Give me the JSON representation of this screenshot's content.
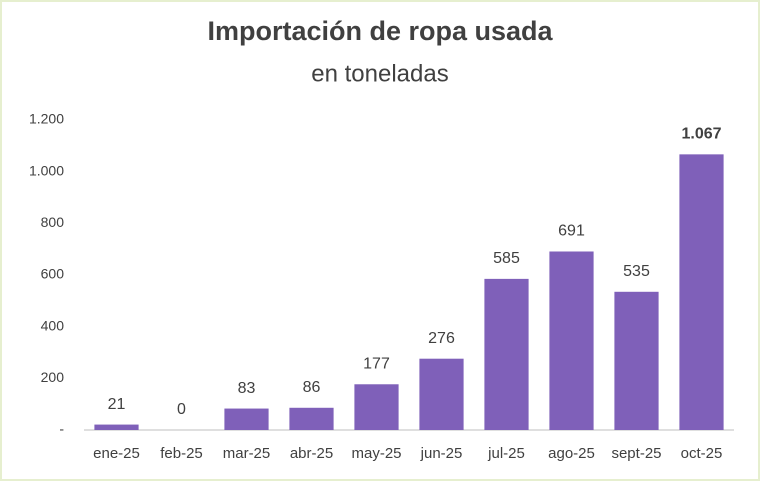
{
  "chart_data": {
    "type": "bar",
    "title": "Importación de ropa usada",
    "subtitle": "en toneladas",
    "categories": [
      "ene-25",
      "feb-25",
      "mar-25",
      "abr-25",
      "may-25",
      "jun-25",
      "jul-25",
      "ago-25",
      "sept-25",
      "oct-25"
    ],
    "values": [
      21,
      0,
      83,
      86,
      177,
      276,
      585,
      691,
      535,
      1067
    ],
    "value_labels": [
      "21",
      "0",
      "83",
      "86",
      "177",
      "276",
      "585",
      "691",
      "535",
      "1.067"
    ],
    "color": "#7f60b9",
    "ylim": [
      0,
      1200
    ],
    "yticks": [
      {
        "value": 0,
        "label": "-"
      },
      200,
      400,
      600,
      800,
      {
        "value": 1000,
        "label": "1.000"
      },
      {
        "value": 1200,
        "label": "1.200"
      }
    ],
    "grid": false
  }
}
